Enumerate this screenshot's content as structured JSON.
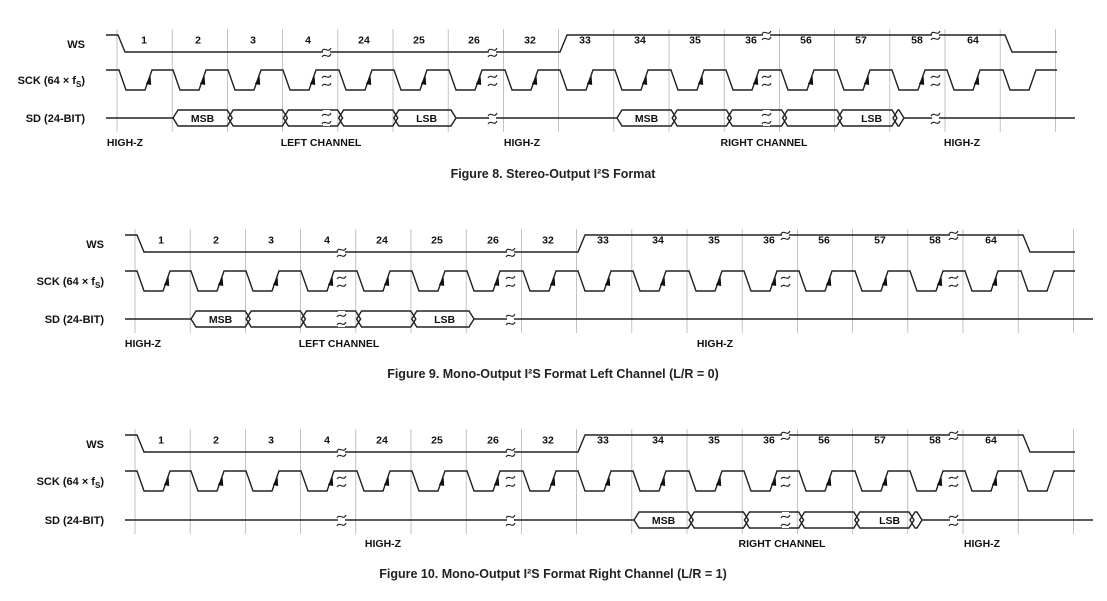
{
  "signal_labels": {
    "ws": "WS",
    "sck_main": "SCK (64 × f",
    "sck_sub": "S",
    "sck_close": ")",
    "sd": "SD (24-BIT)"
  },
  "figures": [
    {
      "caption": "Figure 8. Stereo-Output I²S Format",
      "bit_numbers": [
        "1",
        "2",
        "3",
        "4",
        "24",
        "25",
        "26",
        "32",
        "33",
        "34",
        "35",
        "36",
        "56",
        "57",
        "58",
        "64"
      ],
      "bus_labels": {
        "msb": "MSB",
        "lsb": "LSB"
      },
      "annotations": [
        "HIGH-Z",
        "LEFT CHANNEL",
        "HIGH-Z",
        "RIGHT CHANNEL",
        "HIGH-Z"
      ]
    },
    {
      "caption": "Figure 9. Mono-Output I²S Format Left Channel (L/R = 0)",
      "bit_numbers": [
        "1",
        "2",
        "3",
        "4",
        "24",
        "25",
        "26",
        "32",
        "33",
        "34",
        "35",
        "36",
        "56",
        "57",
        "58",
        "64"
      ],
      "bus_labels": {
        "msb": "MSB",
        "lsb": "LSB"
      },
      "annotations": [
        "HIGH-Z",
        "LEFT CHANNEL",
        "HIGH-Z"
      ]
    },
    {
      "caption": "Figure 10. Mono-Output I²S Format Right Channel (L/R = 1)",
      "bit_numbers": [
        "1",
        "2",
        "3",
        "4",
        "24",
        "25",
        "26",
        "32",
        "33",
        "34",
        "35",
        "36",
        "56",
        "57",
        "58",
        "64"
      ],
      "bus_labels": {
        "msb": "MSB",
        "lsb": "LSB"
      },
      "annotations": [
        "HIGH-Z",
        "RIGHT CHANNEL",
        "HIGH-Z"
      ]
    }
  ]
}
